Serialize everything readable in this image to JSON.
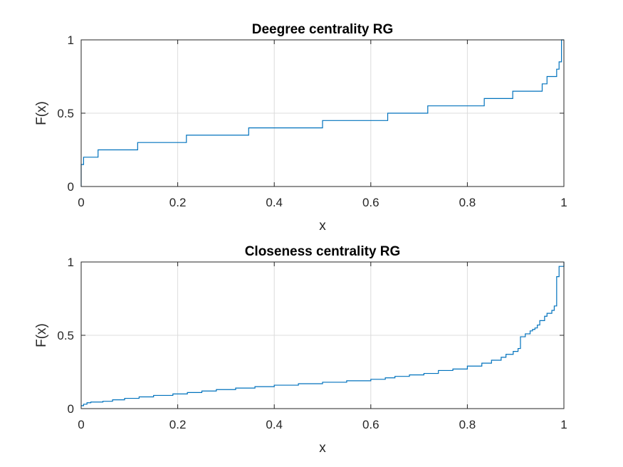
{
  "chart_data": [
    {
      "type": "line",
      "title": "Deegree centrality RG",
      "xlabel": "x",
      "ylabel": "F(x)",
      "xlim": [
        0,
        1
      ],
      "ylim": [
        0,
        1
      ],
      "xticks": [
        0,
        0.2,
        0.4,
        0.6,
        0.8,
        1
      ],
      "xtick_labels": [
        "0",
        "0.2",
        "0.4",
        "0.6",
        "0.8",
        "1"
      ],
      "yticks": [
        0,
        0.5,
        1
      ],
      "ytick_labels": [
        "0",
        "0.5",
        "1"
      ],
      "grid": true,
      "color": "#0072BD",
      "series": [
        {
          "x": [
            0,
            0,
            0.005,
            0.005,
            0.035,
            0.035,
            0.117,
            0.117,
            0.218,
            0.218,
            0.347,
            0.347,
            0.5,
            0.5,
            0.635,
            0.635,
            0.718,
            0.718,
            0.835,
            0.835,
            0.894,
            0.894,
            0.955,
            0.955,
            0.965,
            0.965,
            0.985,
            0.985,
            0.99,
            0.99,
            0.995,
            0.995,
            1
          ],
          "y": [
            0,
            0.15,
            0.15,
            0.2,
            0.2,
            0.25,
            0.25,
            0.3,
            0.3,
            0.35,
            0.35,
            0.4,
            0.4,
            0.45,
            0.45,
            0.5,
            0.5,
            0.55,
            0.55,
            0.6,
            0.6,
            0.65,
            0.65,
            0.7,
            0.7,
            0.75,
            0.75,
            0.8,
            0.8,
            0.85,
            0.85,
            1,
            1
          ]
        }
      ]
    },
    {
      "type": "line",
      "title": "Closeness centrality RG",
      "xlabel": "x",
      "ylabel": "F(x)",
      "xlim": [
        0,
        1
      ],
      "ylim": [
        0,
        1
      ],
      "xticks": [
        0,
        0.2,
        0.4,
        0.6,
        0.8,
        1
      ],
      "xtick_labels": [
        "0",
        "0.2",
        "0.4",
        "0.6",
        "0.8",
        "1"
      ],
      "yticks": [
        0,
        0.5,
        1
      ],
      "ytick_labels": [
        "0",
        "0.5",
        "1"
      ],
      "grid": true,
      "color": "#0072BD",
      "series": [
        {
          "x": [
            0,
            0.005,
            0.012,
            0.02,
            0.045,
            0.065,
            0.09,
            0.12,
            0.15,
            0.19,
            0.22,
            0.25,
            0.28,
            0.32,
            0.36,
            0.4,
            0.45,
            0.5,
            0.55,
            0.6,
            0.63,
            0.65,
            0.68,
            0.71,
            0.74,
            0.77,
            0.8,
            0.83,
            0.85,
            0.87,
            0.88,
            0.895,
            0.905,
            0.91,
            0.92,
            0.93,
            0.935,
            0.94,
            0.945,
            0.95,
            0.96,
            0.965,
            0.975,
            0.98,
            0.985,
            0.99,
            1
          ],
          "y": [
            0.02,
            0.03,
            0.04,
            0.045,
            0.05,
            0.06,
            0.07,
            0.08,
            0.09,
            0.1,
            0.11,
            0.12,
            0.13,
            0.14,
            0.15,
            0.16,
            0.17,
            0.18,
            0.19,
            0.2,
            0.21,
            0.22,
            0.23,
            0.24,
            0.26,
            0.27,
            0.29,
            0.31,
            0.33,
            0.35,
            0.37,
            0.39,
            0.41,
            0.49,
            0.51,
            0.53,
            0.54,
            0.55,
            0.57,
            0.6,
            0.63,
            0.65,
            0.67,
            0.7,
            0.9,
            0.97,
            1
          ]
        }
      ]
    }
  ]
}
